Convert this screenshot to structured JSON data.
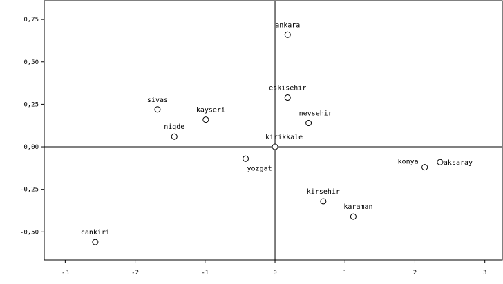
{
  "chart_data": {
    "type": "scatter",
    "title": "",
    "xlabel": "",
    "ylabel": "",
    "xlim": [
      -3.3,
      3.25
    ],
    "ylim": [
      -0.665,
      0.86
    ],
    "reference_lines": {
      "x": 0,
      "y": 0
    },
    "x_ticks": [
      -3,
      -2,
      -1,
      0,
      1,
      2,
      3
    ],
    "x_tick_labels": [
      "-3",
      "-2",
      "-1",
      "0",
      "1",
      "2",
      "3"
    ],
    "y_ticks": [
      0.75,
      0.5,
      0.25,
      0.0,
      -0.25,
      -0.5
    ],
    "y_tick_labels": [
      "0,75",
      "0,50",
      "0,25",
      "0,00",
      "-0,25",
      "-0,50"
    ],
    "grid": false,
    "points": [
      {
        "label": "ankara",
        "x": 0.18,
        "y": 0.66,
        "label_pos": "above"
      },
      {
        "label": "eskisehir",
        "x": 0.18,
        "y": 0.29,
        "label_pos": "above"
      },
      {
        "label": "nevsehir",
        "x": 0.48,
        "y": 0.14,
        "label_pos": "above-right"
      },
      {
        "label": "sivas",
        "x": -1.68,
        "y": 0.22,
        "label_pos": "above"
      },
      {
        "label": "kayseri",
        "x": -0.99,
        "y": 0.16,
        "label_pos": "above-right"
      },
      {
        "label": "nigde",
        "x": -1.44,
        "y": 0.06,
        "label_pos": "above"
      },
      {
        "label": "kirikkale",
        "x": 0.0,
        "y": 0.0,
        "label_pos": "above-right"
      },
      {
        "label": "yozgat",
        "x": -0.42,
        "y": -0.07,
        "label_pos": "below-right"
      },
      {
        "label": "konya",
        "x": 2.14,
        "y": -0.12,
        "label_pos": "left"
      },
      {
        "label": "aksaray",
        "x": 2.36,
        "y": -0.09,
        "label_pos": "right"
      },
      {
        "label": "kirsehir",
        "x": 0.69,
        "y": -0.32,
        "label_pos": "above"
      },
      {
        "label": "karaman",
        "x": 1.12,
        "y": -0.41,
        "label_pos": "above-right"
      },
      {
        "label": "cankiri",
        "x": -2.57,
        "y": -0.56,
        "label_pos": "above"
      }
    ]
  }
}
